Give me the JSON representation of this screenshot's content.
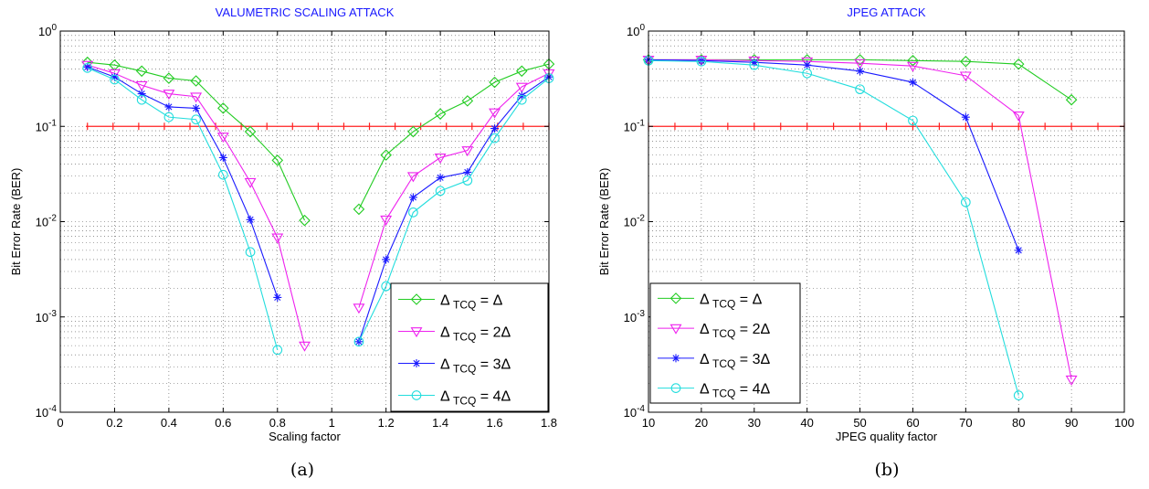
{
  "chart_data": [
    {
      "type": "line",
      "title": "VALUMETRIC SCALING ATTACK",
      "xlabel": "Scaling factor",
      "ylabel": "Bit Error Rate (BER)",
      "caption": "(a)",
      "xlim": [
        0,
        1.8
      ],
      "ylim": [
        0.0001,
        1
      ],
      "yscale": "log",
      "grid": true,
      "legend_position": "bottom-right",
      "xticks": [
        "0",
        "0.2",
        "0.4",
        "0.6",
        "0.8",
        "1",
        "1.2",
        "1.4",
        "1.6",
        "1.8"
      ],
      "yticks": [
        {
          "base": "10",
          "exp": "-4"
        },
        {
          "base": "10",
          "exp": "-3"
        },
        {
          "base": "10",
          "exp": "-2"
        },
        {
          "base": "10",
          "exp": "-1"
        },
        {
          "base": "10",
          "exp": "0"
        }
      ],
      "threshold": 0.1,
      "series": [
        {
          "name": "Δ TCQ = Δ",
          "sub": "TCQ",
          "rhs": "= Δ",
          "color": "#22cc22",
          "marker": "diamond",
          "segments": [
            [
              [
                0.1,
                0.47
              ],
              [
                0.2,
                0.44
              ],
              [
                0.3,
                0.38
              ],
              [
                0.4,
                0.32
              ],
              [
                0.5,
                0.3
              ],
              [
                0.6,
                0.155
              ],
              [
                0.7,
                0.088
              ],
              [
                0.8,
                0.044
              ],
              [
                0.9,
                0.0103
              ]
            ],
            [
              [
                1.1,
                0.0135
              ],
              [
                1.2,
                0.05
              ],
              [
                1.3,
                0.088
              ],
              [
                1.4,
                0.135
              ],
              [
                1.5,
                0.185
              ],
              [
                1.6,
                0.29
              ],
              [
                1.7,
                0.38
              ],
              [
                1.8,
                0.45
              ]
            ]
          ]
        },
        {
          "name": "Δ TCQ = 2Δ",
          "sub": "TCQ",
          "rhs": "= 2Δ",
          "color": "#ee22ee",
          "marker": "triangle-down",
          "segments": [
            [
              [
                0.1,
                0.44
              ],
              [
                0.2,
                0.36
              ],
              [
                0.3,
                0.27
              ],
              [
                0.4,
                0.22
              ],
              [
                0.5,
                0.205
              ],
              [
                0.6,
                0.078
              ],
              [
                0.7,
                0.026
              ],
              [
                0.8,
                0.0068
              ],
              [
                0.9,
                0.0005
              ]
            ],
            [
              [
                1.1,
                0.00125
              ],
              [
                1.2,
                0.0105
              ],
              [
                1.3,
                0.03
              ],
              [
                1.4,
                0.047
              ],
              [
                1.5,
                0.056
              ],
              [
                1.6,
                0.14
              ],
              [
                1.7,
                0.26
              ],
              [
                1.8,
                0.36
              ]
            ]
          ]
        },
        {
          "name": "Δ TCQ = 3Δ",
          "sub": "TCQ",
          "rhs": "= 3Δ",
          "color": "#1a1aff",
          "marker": "star",
          "segments": [
            [
              [
                0.1,
                0.42
              ],
              [
                0.2,
                0.33
              ],
              [
                0.3,
                0.22
              ],
              [
                0.4,
                0.16
              ],
              [
                0.5,
                0.155
              ],
              [
                0.6,
                0.047
              ],
              [
                0.7,
                0.0105
              ],
              [
                0.8,
                0.0016
              ]
            ],
            [
              [
                1.1,
                0.00055
              ],
              [
                1.2,
                0.004
              ],
              [
                1.3,
                0.018
              ],
              [
                1.4,
                0.029
              ],
              [
                1.5,
                0.033
              ],
              [
                1.6,
                0.095
              ],
              [
                1.7,
                0.21
              ],
              [
                1.8,
                0.33
              ]
            ]
          ]
        },
        {
          "name": "Δ TCQ = 4Δ",
          "sub": "TCQ",
          "rhs": "= 4Δ",
          "color": "#22dddd",
          "marker": "circle",
          "segments": [
            [
              [
                0.1,
                0.41
              ],
              [
                0.2,
                0.31
              ],
              [
                0.3,
                0.19
              ],
              [
                0.4,
                0.125
              ],
              [
                0.5,
                0.118
              ],
              [
                0.6,
                0.031
              ],
              [
                0.7,
                0.0048
              ],
              [
                0.8,
                0.00045
              ]
            ],
            [
              [
                1.1,
                0.00055
              ],
              [
                1.2,
                0.0021
              ],
              [
                1.3,
                0.0125
              ],
              [
                1.4,
                0.021
              ],
              [
                1.5,
                0.027
              ],
              [
                1.6,
                0.075
              ],
              [
                1.7,
                0.19
              ],
              [
                1.8,
                0.32
              ]
            ]
          ]
        }
      ]
    },
    {
      "type": "line",
      "title": "JPEG ATTACK",
      "xlabel": "JPEG quality factor",
      "ylabel": "Bit Error Rate (BER)",
      "caption": "(b)",
      "xlim": [
        10,
        100
      ],
      "ylim": [
        0.0001,
        1
      ],
      "yscale": "log",
      "grid": true,
      "legend_position": "bottom-left",
      "xticks": [
        "10",
        "20",
        "30",
        "40",
        "50",
        "60",
        "70",
        "80",
        "90",
        "100"
      ],
      "yticks": [
        {
          "base": "10",
          "exp": "-4"
        },
        {
          "base": "10",
          "exp": "-3"
        },
        {
          "base": "10",
          "exp": "-2"
        },
        {
          "base": "10",
          "exp": "-1"
        },
        {
          "base": "10",
          "exp": "0"
        }
      ],
      "threshold": 0.1,
      "series": [
        {
          "name": "Δ TCQ = Δ",
          "sub": "TCQ",
          "rhs": "= Δ",
          "color": "#22cc22",
          "marker": "diamond",
          "segments": [
            [
              [
                10,
                0.5
              ],
              [
                20,
                0.5
              ],
              [
                30,
                0.5
              ],
              [
                40,
                0.5
              ],
              [
                50,
                0.5
              ],
              [
                60,
                0.49
              ],
              [
                70,
                0.48
              ],
              [
                80,
                0.45
              ],
              [
                90,
                0.19
              ]
            ]
          ]
        },
        {
          "name": "Δ TCQ = 2Δ",
          "sub": "TCQ",
          "rhs": "= 2Δ",
          "color": "#ee22ee",
          "marker": "triangle-down",
          "segments": [
            [
              [
                10,
                0.5
              ],
              [
                20,
                0.5
              ],
              [
                30,
                0.49
              ],
              [
                40,
                0.48
              ],
              [
                50,
                0.46
              ],
              [
                60,
                0.43
              ],
              [
                70,
                0.34
              ],
              [
                80,
                0.13
              ],
              [
                90,
                0.00022
              ]
            ]
          ]
        },
        {
          "name": "Δ TCQ = 3Δ",
          "sub": "TCQ",
          "rhs": "= 3Δ",
          "color": "#1a1aff",
          "marker": "star",
          "segments": [
            [
              [
                10,
                0.5
              ],
              [
                20,
                0.49
              ],
              [
                30,
                0.47
              ],
              [
                40,
                0.44
              ],
              [
                50,
                0.38
              ],
              [
                60,
                0.29
              ],
              [
                70,
                0.125
              ],
              [
                80,
                0.005
              ]
            ]
          ]
        },
        {
          "name": "Δ TCQ = 4Δ",
          "sub": "TCQ",
          "rhs": "= 4Δ",
          "color": "#22dddd",
          "marker": "circle",
          "segments": [
            [
              [
                10,
                0.49
              ],
              [
                20,
                0.48
              ],
              [
                30,
                0.44
              ],
              [
                40,
                0.36
              ],
              [
                50,
                0.245
              ],
              [
                60,
                0.115
              ],
              [
                70,
                0.016
              ],
              [
                80,
                0.00015
              ]
            ]
          ]
        }
      ]
    }
  ]
}
